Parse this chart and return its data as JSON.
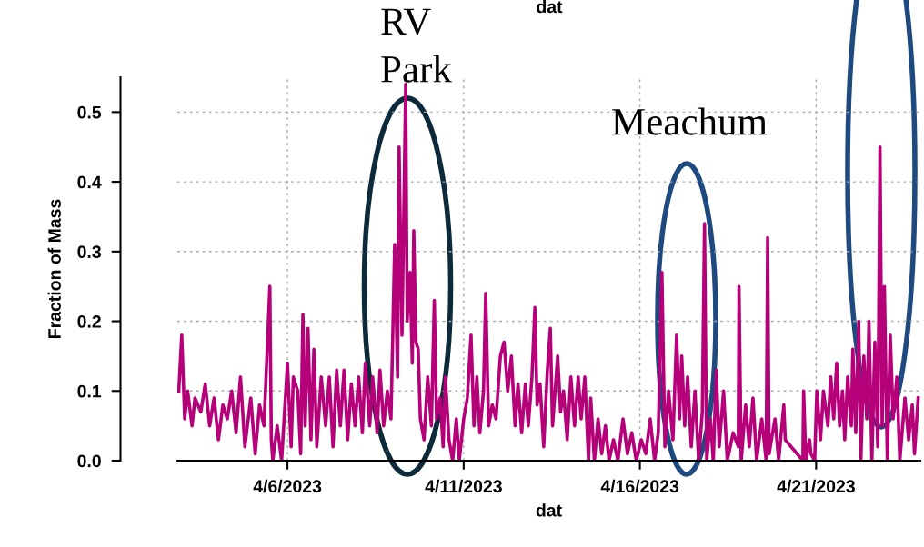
{
  "chart_data": {
    "type": "line",
    "title": "dat",
    "xlabel": "dat",
    "ylabel": "Fraction of Mass",
    "annotations": [
      "RV\nPark",
      "Meachum"
    ],
    "x": [
      "2023-04-02T22:00",
      "2023-04-03T00:00",
      "2023-04-03T02:00",
      "2023-04-03T04:00",
      "2023-04-03T07:00",
      "2023-04-03T09:00",
      "2023-04-03T13:00",
      "2023-04-03T16:00",
      "2023-04-03T19:00",
      "2023-04-03T22:00",
      "2023-04-04T01:00",
      "2023-04-04T04:00",
      "2023-04-04T07:00",
      "2023-04-04T10:00",
      "2023-04-04T13:00",
      "2023-04-04T16:00",
      "2023-04-04T19:00",
      "2023-04-04T23:00",
      "2023-04-05T02:00",
      "2023-04-05T05:00",
      "2023-04-05T08:00",
      "2023-04-05T12:00",
      "2023-04-05T13:00",
      "2023-04-05T14:00",
      "2023-04-05T17:00",
      "2023-04-05T20:00",
      "2023-04-06T00:00",
      "2023-04-06T02:30",
      "2023-04-06T04:00",
      "2023-04-06T07:00",
      "2023-04-06T09:00",
      "2023-04-06T10:30",
      "2023-04-06T12:00",
      "2023-04-06T14:00",
      "2023-04-06T16:00",
      "2023-04-06T18:00",
      "2023-04-06T20:00",
      "2023-04-06T23:00",
      "2023-04-07T02:00",
      "2023-04-07T04:30",
      "2023-04-07T07:00",
      "2023-04-07T09:30",
      "2023-04-07T12:00",
      "2023-04-07T14:30",
      "2023-04-07T17:00",
      "2023-04-07T19:30",
      "2023-04-07T22:00",
      "2023-04-08T00:30",
      "2023-04-08T03:00",
      "2023-04-08T05:00",
      "2023-04-08T08:00",
      "2023-04-08T10:00",
      "2023-04-08T13:00",
      "2023-04-08T15:00",
      "2023-04-08T17:30",
      "2023-04-08T20:00",
      "2023-04-08T22:30",
      "2023-04-09T01:00",
      "2023-04-09T03:00",
      "2023-04-09T04:00",
      "2023-04-09T06:00",
      "2023-04-09T08:30",
      "2023-04-09T09:30",
      "2023-04-09T11:30",
      "2023-04-09T13:00",
      "2023-04-09T14:00",
      "2023-04-09T15:30",
      "2023-04-09T17:00",
      "2023-04-09T18:30",
      "2023-04-09T21:00",
      "2023-04-09T23:30",
      "2023-04-10T02:00",
      "2023-04-10T04:00",
      "2023-04-10T05:30",
      "2023-04-10T08:00",
      "2023-04-10T10:00",
      "2023-04-10T11:30",
      "2023-04-10T14:00",
      "2023-04-10T16:30",
      "2023-04-10T19:00",
      "2023-04-10T21:00",
      "2023-04-11T00:00",
      "2023-04-11T02:30",
      "2023-04-11T05:00",
      "2023-04-11T07:00",
      "2023-04-11T09:00",
      "2023-04-11T11:00",
      "2023-04-11T13:30",
      "2023-04-11T15:00",
      "2023-04-11T17:00",
      "2023-04-11T19:30",
      "2023-04-11T22:00",
      "2023-04-12T01:00",
      "2023-04-12T03:30",
      "2023-04-12T06:00",
      "2023-04-12T08:30",
      "2023-04-12T11:00",
      "2023-04-12T13:00",
      "2023-04-12T15:30",
      "2023-04-12T18:00",
      "2023-04-12T20:00",
      "2023-04-12T22:30",
      "2023-04-13T00:30",
      "2023-04-13T02:00",
      "2023-04-13T04:00",
      "2023-04-13T06:30",
      "2023-04-13T09:00",
      "2023-04-13T11:00",
      "2023-04-13T12:30",
      "2023-04-13T16:00",
      "2023-04-13T18:00",
      "2023-04-13T20:00",
      "2023-04-13T22:30",
      "2023-04-14T01:00",
      "2023-04-14T03:30",
      "2023-04-14T06:00",
      "2023-04-14T08:00",
      "2023-04-14T10:30",
      "2023-04-14T13:00",
      "2023-04-14T14:30",
      "2023-04-14T17:00",
      "2023-04-14T19:30",
      "2023-04-14T22:00",
      "2023-04-15T00:30",
      "2023-04-15T03:00",
      "2023-04-15T06:00",
      "2023-04-15T09:00",
      "2023-04-15T12:30",
      "2023-04-15T15:30",
      "2023-04-15T18:30",
      "2023-04-15T21:30",
      "2023-04-16T01:00",
      "2023-04-16T04:00",
      "2023-04-16T07:00",
      "2023-04-16T10:00",
      "2023-04-16T12:30",
      "2023-04-16T15:00",
      "2023-04-16T17:00",
      "2023-04-16T19:30",
      "2023-04-16T22:30",
      "2023-04-17T01:00",
      "2023-04-17T03:00",
      "2023-04-17T04:30",
      "2023-04-17T06:30",
      "2023-04-17T08:30",
      "2023-04-17T11:00",
      "2023-04-17T13:30",
      "2023-04-17T16:00",
      "2023-04-17T18:30",
      "2023-04-17T20:00",
      "2023-04-17T21:30",
      "2023-04-18T00:00",
      "2023-04-18T02:00",
      "2023-04-18T04:00",
      "2023-04-18T06:00",
      "2023-04-18T09:00",
      "2023-04-18T11:30",
      "2023-04-18T15:30",
      "2023-04-18T19:00",
      "2023-04-18T19:30",
      "2023-04-18T21:00",
      "2023-04-19T00:00",
      "2023-04-19T02:30",
      "2023-04-19T05:00",
      "2023-04-19T07:30",
      "2023-04-19T11:00",
      "2023-04-19T14:00",
      "2023-04-19T15:00",
      "2023-04-19T16:00",
      "2023-04-19T20:00",
      "2023-04-19T22:30",
      "2023-04-20T02:00",
      "2023-04-20T03:00",
      "2023-04-20T15:00",
      "2023-04-20T15:30",
      "2023-04-20T17:00",
      "2023-04-20T19:30",
      "2023-04-20T20:30",
      "2023-04-20T23:00",
      "2023-04-21T00:30",
      "2023-04-21T03:00",
      "2023-04-21T05:00",
      "2023-04-21T08:00",
      "2023-04-21T10:00",
      "2023-04-21T12:00",
      "2023-04-21T14:00",
      "2023-04-21T16:00",
      "2023-04-21T18:00",
      "2023-04-21T19:30",
      "2023-04-21T21:30",
      "2023-04-22T00:00",
      "2023-04-22T01:00",
      "2023-04-22T03:00",
      "2023-04-22T05:00",
      "2023-04-22T06:30",
      "2023-04-22T08:30",
      "2023-04-22T10:30",
      "2023-04-22T12:00",
      "2023-04-22T14:00",
      "2023-04-22T16:00",
      "2023-04-22T18:00",
      "2023-04-22T19:30",
      "2023-04-22T21:00",
      "2023-04-22T22:30",
      "2023-04-23T00:30",
      "2023-04-23T02:30",
      "2023-04-23T04:30",
      "2023-04-23T07:00",
      "2023-04-23T09:00",
      "2023-04-23T12:30",
      "2023-04-23T15:00",
      "2023-04-23T17:30",
      "2023-04-23T19:00",
      "2023-04-23T21:30"
    ],
    "series": [
      {
        "color": "#b5007a",
        "values": [
          0.1,
          0.18,
          0.06,
          0.1,
          0.05,
          0.09,
          0.07,
          0.11,
          0.05,
          0.09,
          0.03,
          0.08,
          0.06,
          0.1,
          0.04,
          0.12,
          0.02,
          0.09,
          0.01,
          0.08,
          0.05,
          0.25,
          0.03,
          0.0,
          0.05,
          0.0,
          0.14,
          0.02,
          0.12,
          0.1,
          0.01,
          0.21,
          0.05,
          0.19,
          0.03,
          0.16,
          0.02,
          0.12,
          0.05,
          0.12,
          0.02,
          0.13,
          0.05,
          0.13,
          0.03,
          0.11,
          0.05,
          0.12,
          0.04,
          0.14,
          0.05,
          0.12,
          0.04,
          0.13,
          0.05,
          0.1,
          0.06,
          0.31,
          0.12,
          0.45,
          0.18,
          0.54,
          0.2,
          0.27,
          0.14,
          0.33,
          0.17,
          0.16,
          0.06,
          0.03,
          0.12,
          0.05,
          0.23,
          0.06,
          0.09,
          0.02,
          0.12,
          0.03,
          0.0,
          0.06,
          0.0,
          0.06,
          0.09,
          0.18,
          0.05,
          0.12,
          0.04,
          0.1,
          0.24,
          0.05,
          0.08,
          0.06,
          0.15,
          0.17,
          0.1,
          0.15,
          0.05,
          0.11,
          0.04,
          0.11,
          0.05,
          0.12,
          0.22,
          0.08,
          0.11,
          0.02,
          0.13,
          0.19,
          0.05,
          0.15,
          0.07,
          0.1,
          0.03,
          0.12,
          0.05,
          0.12,
          0.06,
          0.12,
          0.0,
          0.09,
          0.0,
          0.06,
          0.01,
          0.05,
          0.0,
          0.03,
          0.0,
          0.06,
          0.01,
          0.04,
          0.0,
          0.03,
          0.01,
          0.06,
          0.0,
          0.04,
          0.27,
          0.02,
          0.1,
          0.03,
          0.18,
          0.06,
          0.15,
          0.05,
          0.12,
          0.02,
          0.1,
          0.0,
          0.07,
          0.34,
          0.0,
          0.06,
          0.0,
          0.13,
          0.02,
          0.1,
          0.0,
          0.04,
          0.02,
          0.25,
          0.0,
          0.08,
          0.02,
          0.09,
          0.0,
          0.06,
          0.0,
          0.32,
          0.01,
          0.06,
          0.0,
          0.08,
          0.03,
          0.0,
          0.1,
          0.0,
          0.03,
          0.01,
          0.0,
          0.1,
          0.03,
          0.1,
          0.05,
          0.12,
          0.06,
          0.14,
          0.05,
          0.1,
          0.03,
          0.12,
          0.05,
          0.16,
          0.04,
          0.2,
          0.0,
          0.15,
          0.06,
          0.2,
          0.0,
          0.17,
          0.02,
          0.45,
          0.05,
          0.25,
          0.0,
          0.18,
          0.06,
          0.12,
          0.0,
          0.09,
          0.03,
          0.08,
          0.01,
          0.09
        ]
      }
    ],
    "xlim": [
      "2023-04-02T21:00",
      "2023-04-23T23:00"
    ],
    "xticks": [
      {
        "value": "2023-04-06",
        "label": "4/6/2023"
      },
      {
        "value": "2023-04-11",
        "label": "4/11/2023"
      },
      {
        "value": "2023-04-16",
        "label": "4/16/2023"
      },
      {
        "value": "2023-04-21",
        "label": "4/21/2023"
      }
    ],
    "ylim": [
      0,
      0.55
    ],
    "yticks": [
      {
        "value": 0,
        "label": "0.0"
      },
      {
        "value": 0.1,
        "label": "0.1"
      },
      {
        "value": 0.2,
        "label": "0.2"
      },
      {
        "value": 0.3,
        "label": "0.3"
      },
      {
        "value": 0.4,
        "label": "0.4"
      },
      {
        "value": 0.5,
        "label": "0.5"
      }
    ],
    "grid": true,
    "line_style": "solid",
    "marker": "none"
  }
}
